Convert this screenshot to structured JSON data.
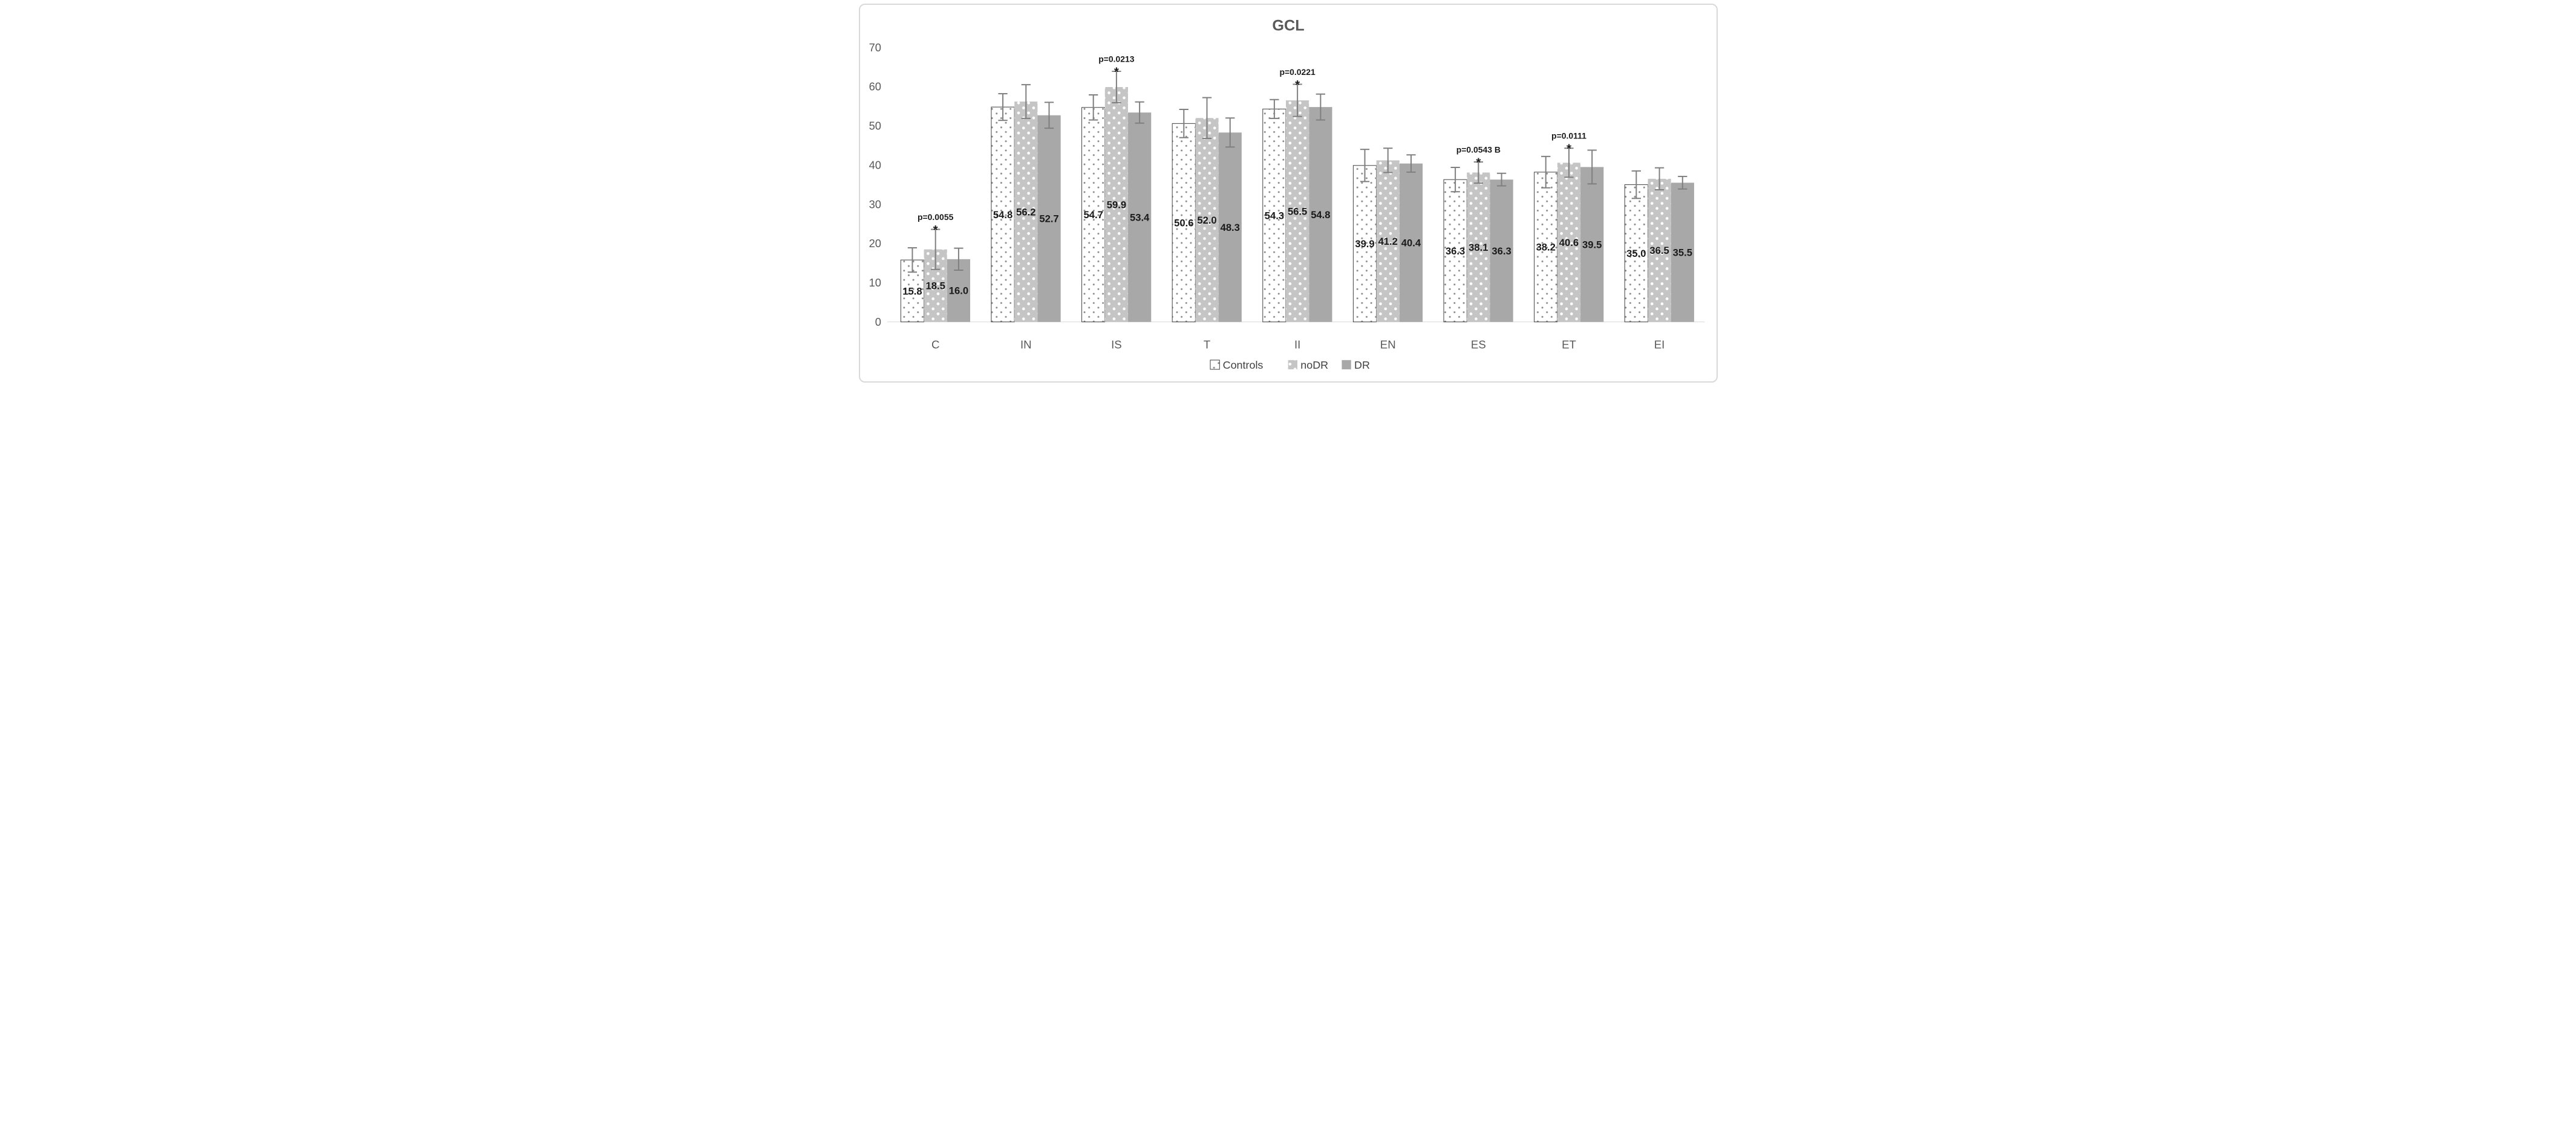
{
  "chart_data": {
    "type": "bar",
    "title": "GCL",
    "xlabel": "",
    "ylabel": "",
    "ylim": [
      0,
      70
    ],
    "yticks": [
      0,
      10,
      20,
      30,
      40,
      50,
      60,
      70
    ],
    "grid": false,
    "legend_position": "bottom",
    "categories": [
      "C",
      "IN",
      "IS",
      "T",
      "II",
      "EN",
      "ES",
      "ET",
      "EI"
    ],
    "series": [
      {
        "name": "Controls",
        "style": "white-dotted",
        "values": [
          15.8,
          54.8,
          54.7,
          50.6,
          54.3,
          39.9,
          36.3,
          38.2,
          35.0
        ],
        "labels": [
          "15.8",
          "54.8",
          "54.7",
          "50.6",
          "54.3",
          "39.9",
          "36.3",
          "38.2",
          "35.0"
        ],
        "errors": [
          3.1,
          3.4,
          3.2,
          3.6,
          2.4,
          4.1,
          3.1,
          4.0,
          3.5
        ]
      },
      {
        "name": "noDR",
        "style": "gray-dotted",
        "values": [
          18.5,
          56.2,
          59.9,
          52.0,
          56.5,
          41.2,
          38.1,
          40.6,
          36.5
        ],
        "labels": [
          "18.5",
          "56.2",
          "59.9",
          "52.0",
          "56.5",
          "41.2",
          "38.1",
          "40.6",
          "36.5"
        ],
        "errors": [
          5.1,
          4.3,
          4.0,
          5.2,
          4.1,
          3.1,
          2.7,
          3.7,
          2.8
        ]
      },
      {
        "name": "DR",
        "style": "gray-solid",
        "values": [
          16.0,
          52.7,
          53.4,
          48.3,
          54.8,
          40.4,
          36.3,
          39.5,
          35.5
        ],
        "labels": [
          "16.0",
          "52.7",
          "53.4",
          "48.3",
          "54.8",
          "40.4",
          "36.3",
          "39.5",
          "35.5"
        ],
        "errors": [
          2.8,
          3.3,
          2.7,
          3.7,
          3.3,
          2.2,
          1.6,
          4.3,
          1.6
        ]
      }
    ],
    "annotations": [
      {
        "category": "C",
        "anchor_series": "noDR",
        "text": "p=0.0055",
        "star": "*"
      },
      {
        "category": "IS",
        "anchor_series": "noDR",
        "text": "p=0.0213",
        "star": "*"
      },
      {
        "category": "II",
        "anchor_series": "noDR",
        "text": "p=0.0221",
        "star": "*"
      },
      {
        "category": "ES",
        "anchor_series": "noDR",
        "text": "p=0.0543 B",
        "star": "*"
      },
      {
        "category": "ET",
        "anchor_series": "noDR",
        "text": "p=0.0111",
        "star": "*"
      }
    ]
  },
  "colors": {
    "title_text": "#595959",
    "axis_text": "#595959",
    "axis_line": "#d9d9d9",
    "label_text": "#1a1a1a",
    "annotation_text": "#1a1a1a",
    "legend_text": "#404040",
    "error_bar": "#7f7f7f",
    "controls_fill": "#ffffff",
    "controls_dot": "#8a8a8a",
    "controls_border": "#404040",
    "nodr_fill": "#c6c5c5",
    "nodr_dot": "#ffffff",
    "dr_fill": "#a9a8a8"
  }
}
